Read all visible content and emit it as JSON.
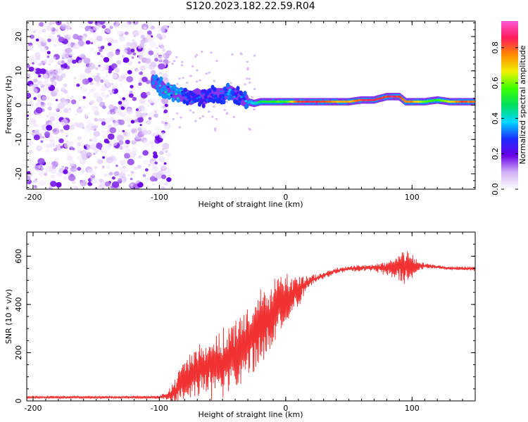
{
  "title": "S120.2023.182.22.59.R04",
  "chart_data": [
    {
      "type": "heatmap",
      "xlabel": "Height of straight line (km)",
      "ylabel": "Frequency (Hz)",
      "xlim": [
        -205,
        150
      ],
      "ylim": [
        -24.5,
        24.5
      ],
      "xticks": [
        -200,
        -100,
        0,
        100
      ],
      "yticks": [
        -20,
        -10,
        0,
        10,
        20
      ],
      "colorbar": {
        "label": "Normalized spectral amplitude",
        "range": [
          0,
          0.95
        ],
        "ticks": [
          0.0,
          0.2,
          0.4,
          0.6,
          0.8
        ],
        "tick_labels": [
          "0.0",
          "0.2",
          "0.4",
          "0.6",
          "0.8"
        ],
        "colormap": [
          "#ffffff",
          "#d2b2f5",
          "#6a00e8",
          "#1a2cff",
          "#00d8ff",
          "#00e060",
          "#3cff00",
          "#f0f000",
          "#ff8a00",
          "#ff1a5a",
          "#ff59d8"
        ]
      },
      "noise_region": {
        "x": [
          -205,
          -98
        ],
        "frequency_range": [
          -24.5,
          24.5
        ],
        "typical_amplitude": [
          0.02,
          0.2
        ]
      },
      "signal_band": [
        {
          "x": -105,
          "frequency": 7,
          "amplitude": 0.35
        },
        {
          "x": -100,
          "frequency": 6,
          "amplitude": 0.35
        },
        {
          "x": -95,
          "frequency": 4,
          "amplitude": 0.4
        },
        {
          "x": -90,
          "frequency": 4,
          "amplitude": 0.35
        },
        {
          "x": -85,
          "frequency": 3,
          "amplitude": 0.4
        },
        {
          "x": -80,
          "frequency": 3,
          "amplitude": 0.3
        },
        {
          "x": -75,
          "frequency": 2,
          "amplitude": 0.3
        },
        {
          "x": -70,
          "frequency": 3,
          "amplitude": 0.3
        },
        {
          "x": -65,
          "frequency": 2,
          "amplitude": 0.25
        },
        {
          "x": -60,
          "frequency": 3,
          "amplitude": 0.3
        },
        {
          "x": -55,
          "frequency": 3,
          "amplitude": 0.3
        },
        {
          "x": -50,
          "frequency": 3,
          "amplitude": 0.3
        },
        {
          "x": -45,
          "frequency": 4,
          "amplitude": 0.35
        },
        {
          "x": -40,
          "frequency": 3,
          "amplitude": 0.3
        },
        {
          "x": -35,
          "frequency": 2,
          "amplitude": 0.3
        },
        {
          "x": -30,
          "frequency": 1,
          "amplitude": 0.35
        },
        {
          "x": -25,
          "frequency": 0.5,
          "amplitude": 0.4
        },
        {
          "x": -20,
          "frequency": 1,
          "amplitude": 0.5
        },
        {
          "x": -15,
          "frequency": 1,
          "amplitude": 0.55
        },
        {
          "x": -10,
          "frequency": 1,
          "amplitude": 0.55
        },
        {
          "x": -5,
          "frequency": 1,
          "amplitude": 0.6
        },
        {
          "x": 0,
          "frequency": 1,
          "amplitude": 0.55
        },
        {
          "x": 10,
          "frequency": 1,
          "amplitude": 0.85
        },
        {
          "x": 20,
          "frequency": 1,
          "amplitude": 0.9
        },
        {
          "x": 30,
          "frequency": 1,
          "amplitude": 0.85
        },
        {
          "x": 40,
          "frequency": 1,
          "amplitude": 0.75
        },
        {
          "x": 50,
          "frequency": 1,
          "amplitude": 0.75
        },
        {
          "x": 60,
          "frequency": 1.5,
          "amplitude": 0.85
        },
        {
          "x": 70,
          "frequency": 1.5,
          "amplitude": 0.9
        },
        {
          "x": 80,
          "frequency": 2.5,
          "amplitude": 0.85
        },
        {
          "x": 85,
          "frequency": 2.5,
          "amplitude": 0.9
        },
        {
          "x": 90,
          "frequency": 2.5,
          "amplitude": 0.85
        },
        {
          "x": 95,
          "frequency": 1,
          "amplitude": 0.8
        },
        {
          "x": 100,
          "frequency": 1,
          "amplitude": 0.8
        },
        {
          "x": 110,
          "frequency": 1,
          "amplitude": 0.6
        },
        {
          "x": 120,
          "frequency": 1.5,
          "amplitude": 0.55
        },
        {
          "x": 130,
          "frequency": 1,
          "amplitude": 0.7
        },
        {
          "x": 140,
          "frequency": 1,
          "amplitude": 0.85
        },
        {
          "x": 150,
          "frequency": 1,
          "amplitude": 0.8
        }
      ]
    },
    {
      "type": "line",
      "xlabel": "Height of straight line (km)",
      "ylabel": "SNR (10 * v/v)",
      "xlim": [
        -205,
        150
      ],
      "ylim": [
        0,
        700
      ],
      "xticks": [
        -200,
        -100,
        0,
        100
      ],
      "yticks": [
        0,
        200,
        400,
        600
      ],
      "color": "#f03232",
      "series": [
        {
          "x": [
            -205,
            -180,
            -150,
            -120,
            -100,
            -95,
            -90,
            -85,
            -80,
            -75,
            -70,
            -65,
            -60,
            -55,
            -50,
            -45,
            -40,
            -35,
            -30,
            -25,
            -20,
            -15,
            -10,
            -5,
            0,
            5,
            10,
            15,
            20,
            25,
            30,
            35,
            40,
            50,
            60,
            70,
            80,
            90,
            95,
            100,
            105,
            110,
            120,
            130,
            140,
            150
          ],
          "y": [
            15,
            15,
            15,
            15,
            15,
            20,
            30,
            60,
            90,
            105,
            120,
            130,
            140,
            150,
            160,
            180,
            200,
            220,
            250,
            280,
            300,
            330,
            360,
            400,
            420,
            440,
            460,
            480,
            500,
            510,
            520,
            530,
            540,
            548,
            550,
            552,
            552,
            555,
            560,
            555,
            560,
            560,
            555,
            550,
            550,
            548
          ],
          "noise": [
            5,
            5,
            5,
            5,
            6,
            15,
            40,
            60,
            80,
            90,
            100,
            110,
            120,
            120,
            130,
            140,
            140,
            140,
            140,
            150,
            150,
            140,
            130,
            110,
            100,
            80,
            60,
            40,
            20,
            15,
            12,
            12,
            12,
            12,
            12,
            14,
            30,
            50,
            80,
            60,
            20,
            10,
            8,
            8,
            8,
            8
          ]
        }
      ]
    }
  ]
}
